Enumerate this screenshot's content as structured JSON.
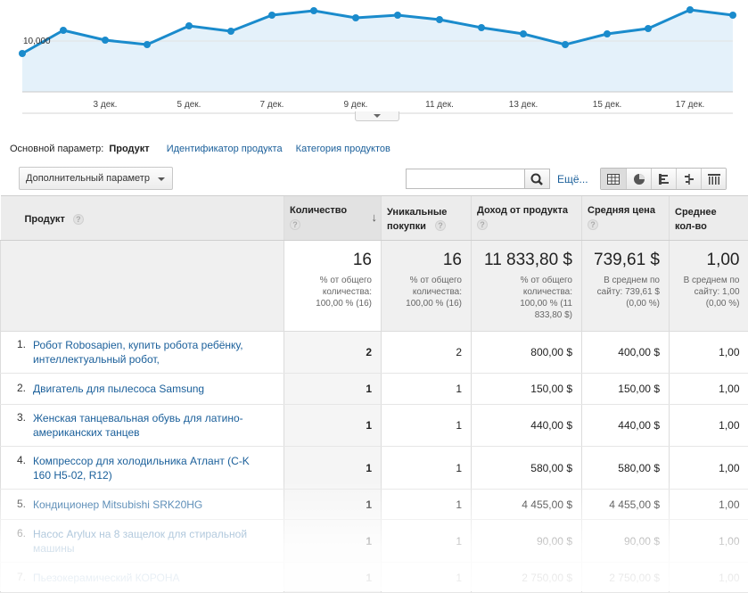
{
  "chart": {
    "y_tick_label": "10,000",
    "x_tick_labels": [
      "3 дек.",
      "5 дек.",
      "7 дек.",
      "9 дек.",
      "11 дек.",
      "13 дек.",
      "15 дек.",
      "17 дек."
    ],
    "line_color": "#1a8bcc",
    "area_color": "#e4f1fa"
  },
  "dimension_bar": {
    "label": "Основной параметр:",
    "selected": "Продукт",
    "options": [
      "Идентификатор продукта",
      "Категория продуктов"
    ]
  },
  "toolbar": {
    "secondary_dimension": "Дополнительный параметр",
    "search_placeholder": "",
    "more_link": "Ещё..."
  },
  "table": {
    "headers": {
      "product": "Продукт",
      "quantity": "Количество",
      "unique": "Уникальные покупки",
      "revenue": "Доход от продукта",
      "avg_price": "Средняя цена",
      "avg_qty": "Среднее кол-во"
    },
    "totals": {
      "quantity": "16",
      "quantity_sub": "% от общего количества: 100,00 % (16)",
      "unique": "16",
      "unique_sub": "% от общего количества: 100,00 % (16)",
      "revenue": "11 833,80 $",
      "revenue_sub": "% от общего количества: 100,00 % (11 833,80 $)",
      "avg_price": "739,61 $",
      "avg_price_sub": "В среднем по сайту: 739,61 $ (0,00 %)",
      "avg_qty": "1,00",
      "avg_qty_sub": "В среднем по сайту: 1,00 (0,00 %)"
    },
    "rows": [
      {
        "n": "1.",
        "product": "Робот Robosapien, купить робота ребёнку, интеллектуальный робот,",
        "quantity": "2",
        "unique": "2",
        "revenue": "800,00 $",
        "avg_price": "400,00 $",
        "avg_qty": "1,00"
      },
      {
        "n": "2.",
        "product": "Двигатель для пылесоса Samsung",
        "quantity": "1",
        "unique": "1",
        "revenue": "150,00 $",
        "avg_price": "150,00 $",
        "avg_qty": "1,00"
      },
      {
        "n": "3.",
        "product": "Женская танцевальная обувь для латино-американских танцев",
        "quantity": "1",
        "unique": "1",
        "revenue": "440,00 $",
        "avg_price": "440,00 $",
        "avg_qty": "1,00"
      },
      {
        "n": "4.",
        "product": "Компрессор для холодильника Атлант (C-K 160 H5-02, R12)",
        "quantity": "1",
        "unique": "1",
        "revenue": "580,00 $",
        "avg_price": "580,00 $",
        "avg_qty": "1,00"
      },
      {
        "n": "5.",
        "product": "Кондиционер Mitsubishi SRK20HG",
        "quantity": "1",
        "unique": "1",
        "revenue": "4 455,00 $",
        "avg_price": "4 455,00 $",
        "avg_qty": "1,00"
      },
      {
        "n": "6.",
        "product": "Насос Arylux на 8 защелок для стиральной машины",
        "quantity": "1",
        "unique": "1",
        "revenue": "90,00 $",
        "avg_price": "90,00 $",
        "avg_qty": "1,00"
      },
      {
        "n": "7.",
        "product": "Пьезокерамический КОРОНА",
        "quantity": "1",
        "unique": "1",
        "revenue": "2 750,00 $",
        "avg_price": "2 750,00 $",
        "avg_qty": "1,00"
      }
    ]
  }
}
